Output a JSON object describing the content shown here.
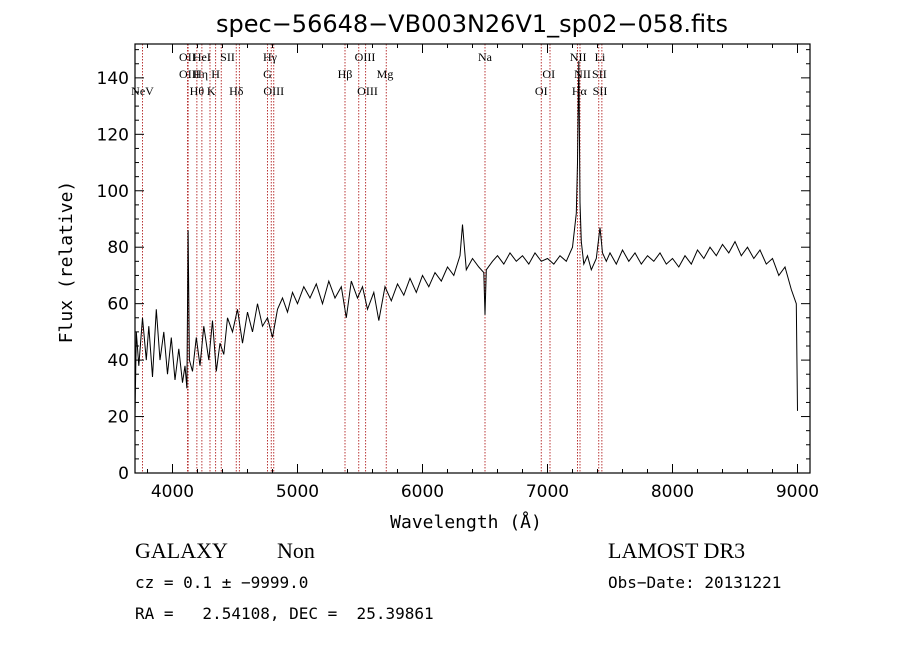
{
  "chart_data": {
    "type": "line",
    "title": "spec−56648−VB003N26V1_sp02−058.fits",
    "xlabel": "Wavelength (Å)",
    "ylabel": "Flux (relative)",
    "xlim": [
      3700,
      9100
    ],
    "ylim": [
      0,
      152
    ],
    "x_ticks": [
      4000,
      5000,
      6000,
      7000,
      8000,
      9000
    ],
    "y_ticks": [
      0,
      20,
      40,
      60,
      80,
      100,
      120,
      140
    ],
    "line_color": "#000000",
    "marker_color": "#b22222",
    "spectrum": [
      [
        3700,
        20
      ],
      [
        3710,
        50
      ],
      [
        3730,
        38
      ],
      [
        3760,
        55
      ],
      [
        3790,
        40
      ],
      [
        3810,
        52
      ],
      [
        3840,
        34
      ],
      [
        3870,
        58
      ],
      [
        3900,
        40
      ],
      [
        3930,
        50
      ],
      [
        3960,
        35
      ],
      [
        3990,
        48
      ],
      [
        4020,
        33
      ],
      [
        4050,
        44
      ],
      [
        4080,
        32
      ],
      [
        4100,
        38
      ],
      [
        4115,
        30
      ],
      [
        4125,
        86
      ],
      [
        4135,
        40
      ],
      [
        4160,
        36
      ],
      [
        4190,
        48
      ],
      [
        4220,
        38
      ],
      [
        4250,
        52
      ],
      [
        4290,
        40
      ],
      [
        4320,
        54
      ],
      [
        4350,
        36
      ],
      [
        4380,
        46
      ],
      [
        4410,
        42
      ],
      [
        4440,
        55
      ],
      [
        4480,
        50
      ],
      [
        4520,
        58
      ],
      [
        4560,
        46
      ],
      [
        4600,
        57
      ],
      [
        4640,
        50
      ],
      [
        4680,
        60
      ],
      [
        4720,
        52
      ],
      [
        4760,
        55
      ],
      [
        4800,
        48
      ],
      [
        4840,
        58
      ],
      [
        4880,
        62
      ],
      [
        4920,
        57
      ],
      [
        4960,
        64
      ],
      [
        5000,
        60
      ],
      [
        5050,
        66
      ],
      [
        5100,
        62
      ],
      [
        5150,
        67
      ],
      [
        5200,
        60
      ],
      [
        5250,
        68
      ],
      [
        5300,
        62
      ],
      [
        5350,
        66
      ],
      [
        5390,
        55
      ],
      [
        5430,
        68
      ],
      [
        5480,
        62
      ],
      [
        5520,
        66
      ],
      [
        5560,
        58
      ],
      [
        5610,
        64
      ],
      [
        5650,
        54
      ],
      [
        5700,
        66
      ],
      [
        5750,
        61
      ],
      [
        5800,
        67
      ],
      [
        5850,
        63
      ],
      [
        5900,
        69
      ],
      [
        5950,
        64
      ],
      [
        6000,
        70
      ],
      [
        6050,
        66
      ],
      [
        6100,
        71
      ],
      [
        6150,
        68
      ],
      [
        6200,
        73
      ],
      [
        6250,
        70
      ],
      [
        6300,
        77
      ],
      [
        6320,
        88
      ],
      [
        6350,
        72
      ],
      [
        6400,
        76
      ],
      [
        6450,
        73
      ],
      [
        6490,
        71
      ],
      [
        6500,
        56
      ],
      [
        6510,
        72
      ],
      [
        6560,
        75
      ],
      [
        6600,
        77
      ],
      [
        6650,
        74
      ],
      [
        6700,
        78
      ],
      [
        6750,
        75
      ],
      [
        6800,
        77
      ],
      [
        6850,
        74
      ],
      [
        6900,
        78
      ],
      [
        6950,
        75
      ],
      [
        7000,
        76
      ],
      [
        7050,
        74
      ],
      [
        7100,
        77
      ],
      [
        7150,
        75
      ],
      [
        7200,
        80
      ],
      [
        7230,
        92
      ],
      [
        7240,
        110
      ],
      [
        7250,
        146
      ],
      [
        7260,
        96
      ],
      [
        7270,
        82
      ],
      [
        7290,
        74
      ],
      [
        7320,
        77
      ],
      [
        7350,
        72
      ],
      [
        7390,
        76
      ],
      [
        7420,
        87
      ],
      [
        7440,
        78
      ],
      [
        7470,
        75
      ],
      [
        7500,
        78
      ],
      [
        7550,
        74
      ],
      [
        7600,
        79
      ],
      [
        7650,
        75
      ],
      [
        7700,
        78
      ],
      [
        7750,
        74
      ],
      [
        7800,
        77
      ],
      [
        7850,
        75
      ],
      [
        7900,
        78
      ],
      [
        7950,
        74
      ],
      [
        8000,
        76
      ],
      [
        8050,
        73
      ],
      [
        8100,
        77
      ],
      [
        8150,
        74
      ],
      [
        8200,
        79
      ],
      [
        8250,
        76
      ],
      [
        8300,
        80
      ],
      [
        8350,
        77
      ],
      [
        8400,
        81
      ],
      [
        8450,
        78
      ],
      [
        8500,
        82
      ],
      [
        8550,
        77
      ],
      [
        8600,
        80
      ],
      [
        8650,
        76
      ],
      [
        8700,
        79
      ],
      [
        8750,
        74
      ],
      [
        8800,
        76
      ],
      [
        8850,
        70
      ],
      [
        8900,
        73
      ],
      [
        8950,
        65
      ],
      [
        8990,
        60
      ],
      [
        9000,
        22
      ]
    ],
    "lines": [
      {
        "name": "NeV",
        "wl": 3760,
        "row": 3
      },
      {
        "name": "OII",
        "wl": 4119,
        "row": 1
      },
      {
        "name": "OIII",
        "wl": 4135,
        "row": 2
      },
      {
        "name": "Hθ",
        "wl": 4195,
        "row": 3
      },
      {
        "name": "HeI",
        "wl": 4235,
        "row": 1
      },
      {
        "name": "Hη",
        "wl": 4225,
        "row": 2
      },
      {
        "name": "K",
        "wl": 4310,
        "row": 3
      },
      {
        "name": "H",
        "wl": 4345,
        "row": 2
      },
      {
        "name": "SII",
        "wl": 4440,
        "row": 1
      },
      {
        "name": "Hδ",
        "wl": 4510,
        "row": 3
      },
      {
        "name": "Hγ",
        "wl": 4780,
        "row": 1
      },
      {
        "name": "G",
        "wl": 4760,
        "row": 2
      },
      {
        "name": "OIII",
        "wl": 4810,
        "row": 3
      },
      {
        "name": "OIII",
        "wl": 5540,
        "row": 1
      },
      {
        "name": "Hβ",
        "wl": 5380,
        "row": 2
      },
      {
        "name": "OIII",
        "wl": 5560,
        "row": 3
      },
      {
        "name": "Mg",
        "wl": 5700,
        "row": 2
      },
      {
        "name": "Na",
        "wl": 6500,
        "row": 1
      },
      {
        "name": "OI",
        "wl": 7010,
        "row": 2
      },
      {
        "name": "OI",
        "wl": 6950,
        "row": 3
      },
      {
        "name": "NII",
        "wl": 7245,
        "row": 1
      },
      {
        "name": "NII",
        "wl": 7280,
        "row": 2
      },
      {
        "name": "Hα",
        "wl": 7255,
        "row": 3
      },
      {
        "name": "Li",
        "wl": 7420,
        "row": 1
      },
      {
        "name": "SII",
        "wl": 7415,
        "row": 2
      },
      {
        "name": "SII",
        "wl": 7420,
        "row": 3
      }
    ],
    "marker_wls": [
      3760,
      4120,
      4125,
      4195,
      4235,
      4300,
      4345,
      4390,
      4510,
      4535,
      4760,
      4790,
      4810,
      5380,
      5490,
      5545,
      5710,
      6500,
      6950,
      7020,
      7240,
      7260,
      7410,
      7435
    ]
  },
  "footer": {
    "object_class": "GALAXY",
    "subclass": "Non",
    "survey": "LAMOST DR3",
    "cz": "cz = 0.1 ± −9999.0",
    "obs_date": "Obs−Date: 20131221",
    "coords": "RA =   2.54108, DEC =  25.39861"
  }
}
